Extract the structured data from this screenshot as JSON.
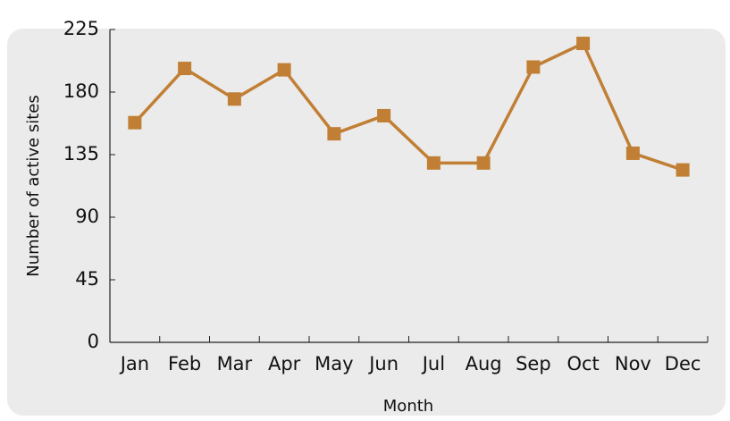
{
  "chart_data": {
    "type": "line",
    "categories": [
      "Jan",
      "Feb",
      "Mar",
      "Apr",
      "May",
      "Jun",
      "Jul",
      "Aug",
      "Sep",
      "Oct",
      "Nov",
      "Dec"
    ],
    "series": [
      {
        "name": "Number of active sites",
        "color": "#c17f35",
        "values": [
          158,
          197,
          175,
          196,
          150,
          163,
          129,
          129,
          198,
          215,
          136,
          124
        ]
      }
    ],
    "xlabel": "Month",
    "ylabel": "Number of active sites",
    "ylim": [
      0,
      225
    ],
    "yticks": [
      0,
      45,
      90,
      135,
      180,
      225
    ],
    "grid": false
  }
}
